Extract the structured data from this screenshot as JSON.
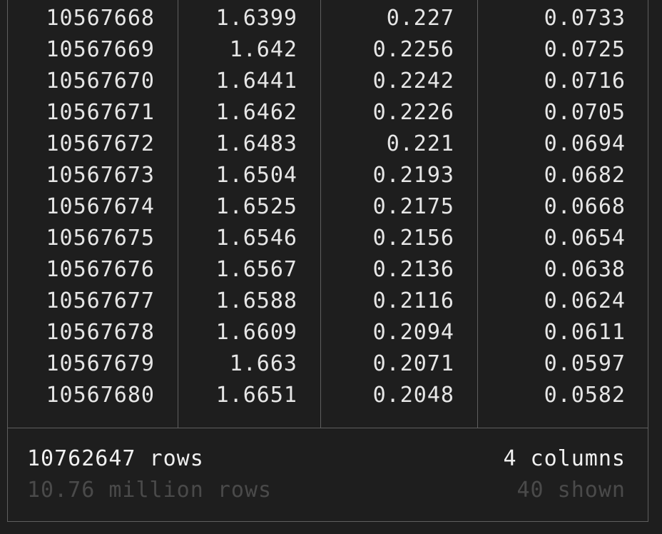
{
  "table": {
    "rows": [
      [
        "10567668",
        "1.6399",
        "0.227",
        "0.0733"
      ],
      [
        "10567669",
        "1.642",
        "0.2256",
        "0.0725"
      ],
      [
        "10567670",
        "1.6441",
        "0.2242",
        "0.0716"
      ],
      [
        "10567671",
        "1.6462",
        "0.2226",
        "0.0705"
      ],
      [
        "10567672",
        "1.6483",
        "0.221",
        "0.0694"
      ],
      [
        "10567673",
        "1.6504",
        "0.2193",
        "0.0682"
      ],
      [
        "10567674",
        "1.6525",
        "0.2175",
        "0.0668"
      ],
      [
        "10567675",
        "1.6546",
        "0.2156",
        "0.0654"
      ],
      [
        "10567676",
        "1.6567",
        "0.2136",
        "0.0638"
      ],
      [
        "10567677",
        "1.6588",
        "0.2116",
        "0.0624"
      ],
      [
        "10567678",
        "1.6609",
        "0.2094",
        "0.0611"
      ],
      [
        "10567679",
        "1.663",
        "0.2071",
        "0.0597"
      ],
      [
        "10567680",
        "1.6651",
        "0.2048",
        "0.0582"
      ]
    ]
  },
  "footer": {
    "row_count": "10762647 rows",
    "row_count_human": "10.76 million rows",
    "column_count": "4 columns",
    "columns_shown": "40 shown"
  },
  "colors": {
    "background": "#1e1e1e",
    "text": "#e6e6e6",
    "muted_text": "#4a4a4a",
    "border": "#5e5e5e"
  }
}
